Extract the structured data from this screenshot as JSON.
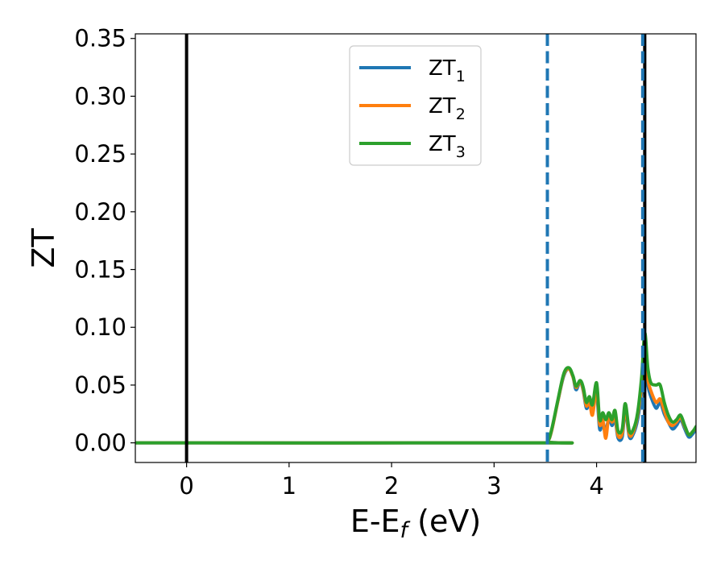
{
  "chart_data": {
    "type": "line",
    "xlabel": {
      "main": "E-E",
      "sub": "f",
      "rest": " (eV)"
    },
    "ylabel": "ZT",
    "xlim": [
      -0.5,
      4.97
    ],
    "ylim": [
      -0.017,
      0.354
    ],
    "xticks": [
      0,
      1,
      2,
      3,
      4
    ],
    "xtick_labels": [
      "0",
      "1",
      "2",
      "3",
      "4"
    ],
    "yticks": [
      0.0,
      0.05,
      0.1,
      0.15,
      0.2,
      0.25,
      0.3,
      0.35
    ],
    "ytick_labels": [
      "0.00",
      "0.05",
      "0.10",
      "0.15",
      "0.20",
      "0.25",
      "0.30",
      "0.35"
    ],
    "grid": false,
    "legend": {
      "position": "top-center",
      "entries": [
        {
          "main": "ZT",
          "sub": "1"
        },
        {
          "main": "ZT",
          "sub": "2"
        },
        {
          "main": "ZT",
          "sub": "3"
        }
      ]
    },
    "reference_lines": [
      {
        "x": 0.0,
        "style": "solid",
        "color": "#000000"
      },
      {
        "x": 4.47,
        "style": "solid",
        "color": "#000000"
      },
      {
        "x": 3.52,
        "style": "dashed",
        "color": "#1f77b4"
      },
      {
        "x": 4.45,
        "style": "dashed",
        "color": "#1f77b4"
      }
    ],
    "series": [
      {
        "name": "ZT1",
        "color": "#1f77b4",
        "x": [
          -0.5,
          3.45,
          3.52,
          3.56,
          3.62,
          3.68,
          3.73,
          3.77,
          3.8,
          3.84,
          3.87,
          3.9,
          3.93,
          3.96,
          4.0,
          4.03,
          4.06,
          4.09,
          4.12,
          4.15,
          4.18,
          4.21,
          4.25,
          4.28,
          4.32,
          4.36,
          4.4,
          4.44,
          4.47,
          4.5,
          4.53,
          4.58,
          4.62,
          4.66,
          4.7,
          4.74,
          4.78,
          4.82,
          4.86,
          4.9,
          4.94,
          4.97
        ],
        "y": [
          0.0,
          0.0,
          0.001,
          0.01,
          0.035,
          0.058,
          0.064,
          0.057,
          0.046,
          0.053,
          0.045,
          0.03,
          0.034,
          0.03,
          0.042,
          0.012,
          0.018,
          0.01,
          0.022,
          0.015,
          0.02,
          0.004,
          0.005,
          0.028,
          0.005,
          0.008,
          0.02,
          0.045,
          0.073,
          0.05,
          0.04,
          0.03,
          0.035,
          0.025,
          0.018,
          0.012,
          0.015,
          0.02,
          0.012,
          0.005,
          0.008,
          0.012
        ]
      },
      {
        "name": "ZT2",
        "color": "#ff7f0e",
        "x": [
          -0.5,
          3.45,
          3.52,
          3.56,
          3.62,
          3.68,
          3.73,
          3.77,
          3.8,
          3.84,
          3.87,
          3.9,
          3.93,
          3.96,
          4.0,
          4.03,
          4.06,
          4.09,
          4.12,
          4.15,
          4.18,
          4.21,
          4.25,
          4.28,
          4.32,
          4.36,
          4.4,
          4.44,
          4.47,
          4.5,
          4.53,
          4.58,
          4.62,
          4.66,
          4.7,
          4.74,
          4.78,
          4.82,
          4.86,
          4.9,
          4.94,
          4.97
        ],
        "y": [
          0.0,
          0.0,
          0.001,
          0.01,
          0.035,
          0.059,
          0.064,
          0.057,
          0.048,
          0.053,
          0.046,
          0.032,
          0.036,
          0.024,
          0.046,
          0.016,
          0.02,
          0.004,
          0.024,
          0.018,
          0.022,
          0.006,
          0.008,
          0.03,
          0.007,
          0.01,
          0.024,
          0.05,
          0.079,
          0.055,
          0.045,
          0.035,
          0.038,
          0.028,
          0.018,
          0.015,
          0.018,
          0.022,
          0.014,
          0.007,
          0.01,
          0.013
        ]
      },
      {
        "name": "ZT3",
        "color": "#2ca02c",
        "x": [
          -0.5,
          3.45,
          3.52,
          3.56,
          3.62,
          3.68,
          3.73,
          3.77,
          3.8,
          3.84,
          3.87,
          3.9,
          3.93,
          3.96,
          4.0,
          4.03,
          4.06,
          4.09,
          4.12,
          4.15,
          4.18,
          4.21,
          4.25,
          4.28,
          4.32,
          4.36,
          4.4,
          4.44,
          4.47,
          4.5,
          4.53,
          4.58,
          4.62,
          4.66,
          4.7,
          4.74,
          4.78,
          4.82,
          4.86,
          4.9,
          4.94,
          4.97
        ],
        "y": [
          0.0,
          0.0,
          0.001,
          0.011,
          0.036,
          0.06,
          0.065,
          0.058,
          0.049,
          0.054,
          0.048,
          0.035,
          0.04,
          0.033,
          0.052,
          0.02,
          0.026,
          0.02,
          0.026,
          0.02,
          0.028,
          0.01,
          0.012,
          0.034,
          0.01,
          0.012,
          0.026,
          0.058,
          0.095,
          0.065,
          0.052,
          0.05,
          0.05,
          0.035,
          0.024,
          0.018,
          0.02,
          0.024,
          0.015,
          0.007,
          0.01,
          0.014
        ]
      }
    ]
  }
}
